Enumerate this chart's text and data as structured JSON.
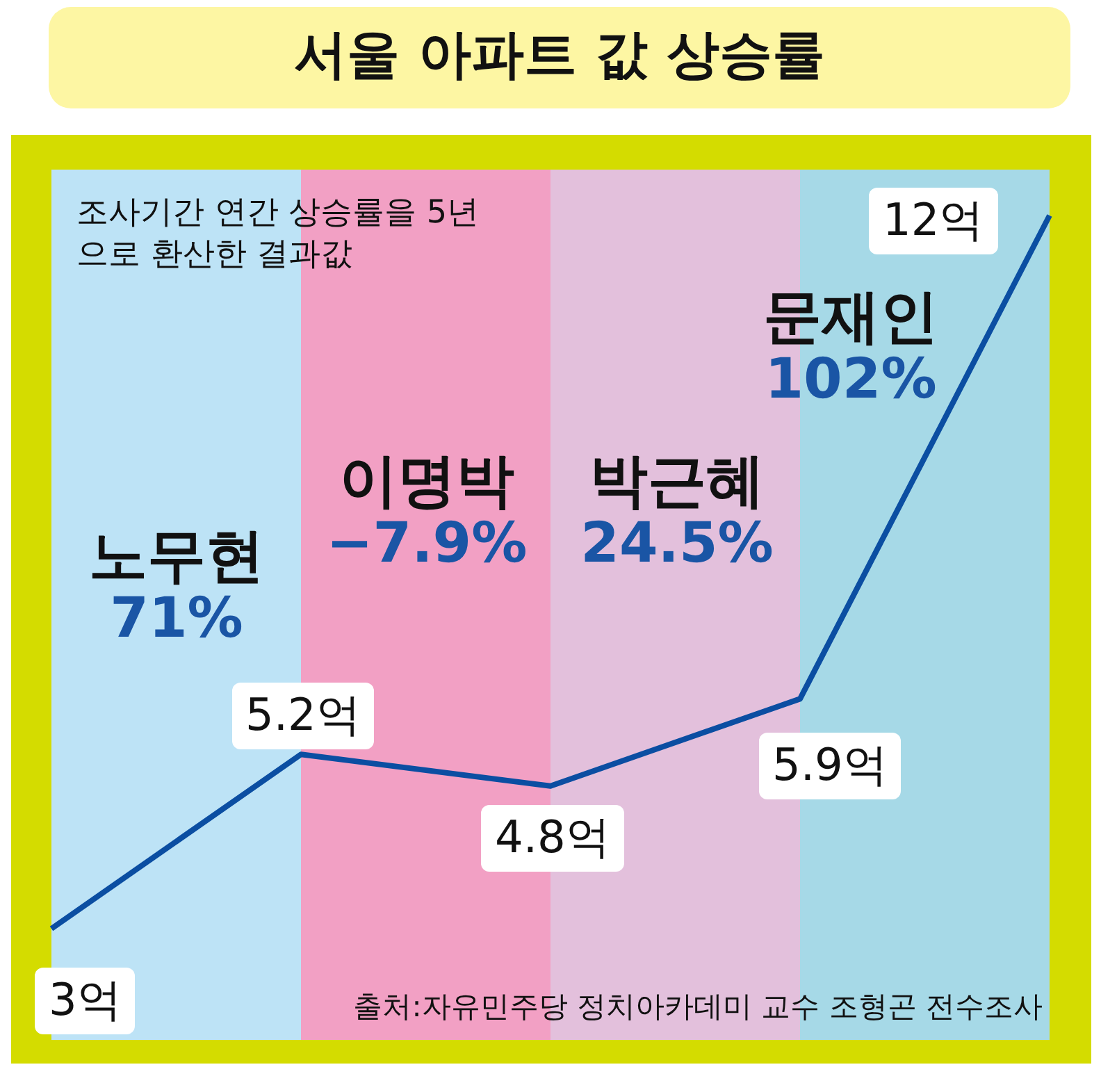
{
  "chart_data": {
    "type": "line",
    "title": "서울 아파트 값 상승률",
    "categories": [
      null,
      null,
      null,
      null,
      null
    ],
    "series": [
      {
        "color": "#0b4ea2",
        "values": [
          3,
          5.2,
          4.8,
          5.9,
          12
        ],
        "value_labels": [
          "3억",
          "5.2억",
          "4.8억",
          "5.9억",
          "12억"
        ]
      }
    ],
    "annotations": [
      "노무현",
      "71%",
      "이명박",
      "−7.9%",
      "박근혜",
      "24.5%",
      "문재인",
      "102%",
      "조사기간 연간 상승률을 5년으로 환산한 결과값",
      "출처:자유민주당 정치아카데미 교수 조형곤 전수조사"
    ]
  }
}
